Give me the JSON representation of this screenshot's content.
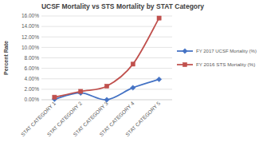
{
  "chart_data": {
    "type": "line",
    "title": "UCSF Mortality vs STS Mortality by STAT Category",
    "y_label": "Percent Rate",
    "categories": [
      "STAT CATEGORY 1",
      "STAT CATEGORY 2",
      "STAT CATEGORY 3",
      "STAT CATEGORY 4",
      "STAT CATEGORY 5"
    ],
    "series": [
      {
        "name": "FY 2017 UCSF Mortality (%)",
        "color": "#4472c4",
        "marker": "diamond",
        "values": [
          0.1,
          1.3,
          0.0,
          2.3,
          3.9
        ]
      },
      {
        "name": "FY 2016 STS Mortality (%)",
        "color": "#c0504d",
        "marker": "square",
        "values": [
          0.5,
          1.6,
          2.6,
          6.8,
          15.6
        ]
      }
    ],
    "ylim": [
      0,
      16
    ],
    "yticks": [
      {
        "value": 0,
        "label": "0.00%"
      },
      {
        "value": 2,
        "label": "2.00%"
      },
      {
        "value": 4,
        "label": "4.00%"
      },
      {
        "value": 6,
        "label": "6.00%"
      },
      {
        "value": 8,
        "label": "8.00%"
      },
      {
        "value": 10,
        "label": "10.00%"
      },
      {
        "value": 12,
        "label": "12.00%"
      },
      {
        "value": 14,
        "label": "14.00%"
      },
      {
        "value": 16,
        "label": "16.00%"
      }
    ],
    "grid": true,
    "legend": "right",
    "line_style": "smooth"
  }
}
